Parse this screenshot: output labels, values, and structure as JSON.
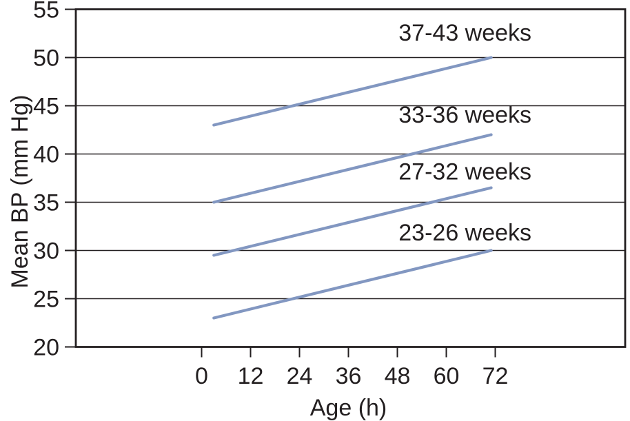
{
  "chart_data": {
    "type": "line",
    "title": "",
    "xlabel": "Age (h)",
    "ylabel": "Mean BP (mm Hg)",
    "x_ticks": [
      0,
      12,
      24,
      36,
      48,
      60,
      72
    ],
    "y_ticks": [
      55,
      50,
      45,
      40,
      35,
      30,
      25,
      20
    ],
    "xlim": [
      0,
      72
    ],
    "ylim": [
      20,
      55
    ],
    "grid": "horizontal-only",
    "legend_position": "inline-labels-above-lines",
    "series": [
      {
        "name": "37-43 weeks",
        "x": [
          3,
          71
        ],
        "y": [
          43,
          50
        ],
        "label_anchor": {
          "x": 48.3,
          "y": 52.6
        }
      },
      {
        "name": "33-36 weeks",
        "x": [
          3,
          71
        ],
        "y": [
          35,
          42
        ],
        "label_anchor": {
          "x": 48.3,
          "y": 44.1
        }
      },
      {
        "name": "27-32 weeks",
        "x": [
          3,
          71
        ],
        "y": [
          29.5,
          36.5
        ],
        "label_anchor": {
          "x": 48.3,
          "y": 38.2
        }
      },
      {
        "name": "23-26 weeks",
        "x": [
          3,
          71
        ],
        "y": [
          23,
          30
        ],
        "label_anchor": {
          "x": 48.3,
          "y": 31.9
        }
      }
    ],
    "colors": {
      "line": "#8297c1",
      "axis": "#231f20",
      "text": "#231f20",
      "background": "#ffffff"
    }
  }
}
